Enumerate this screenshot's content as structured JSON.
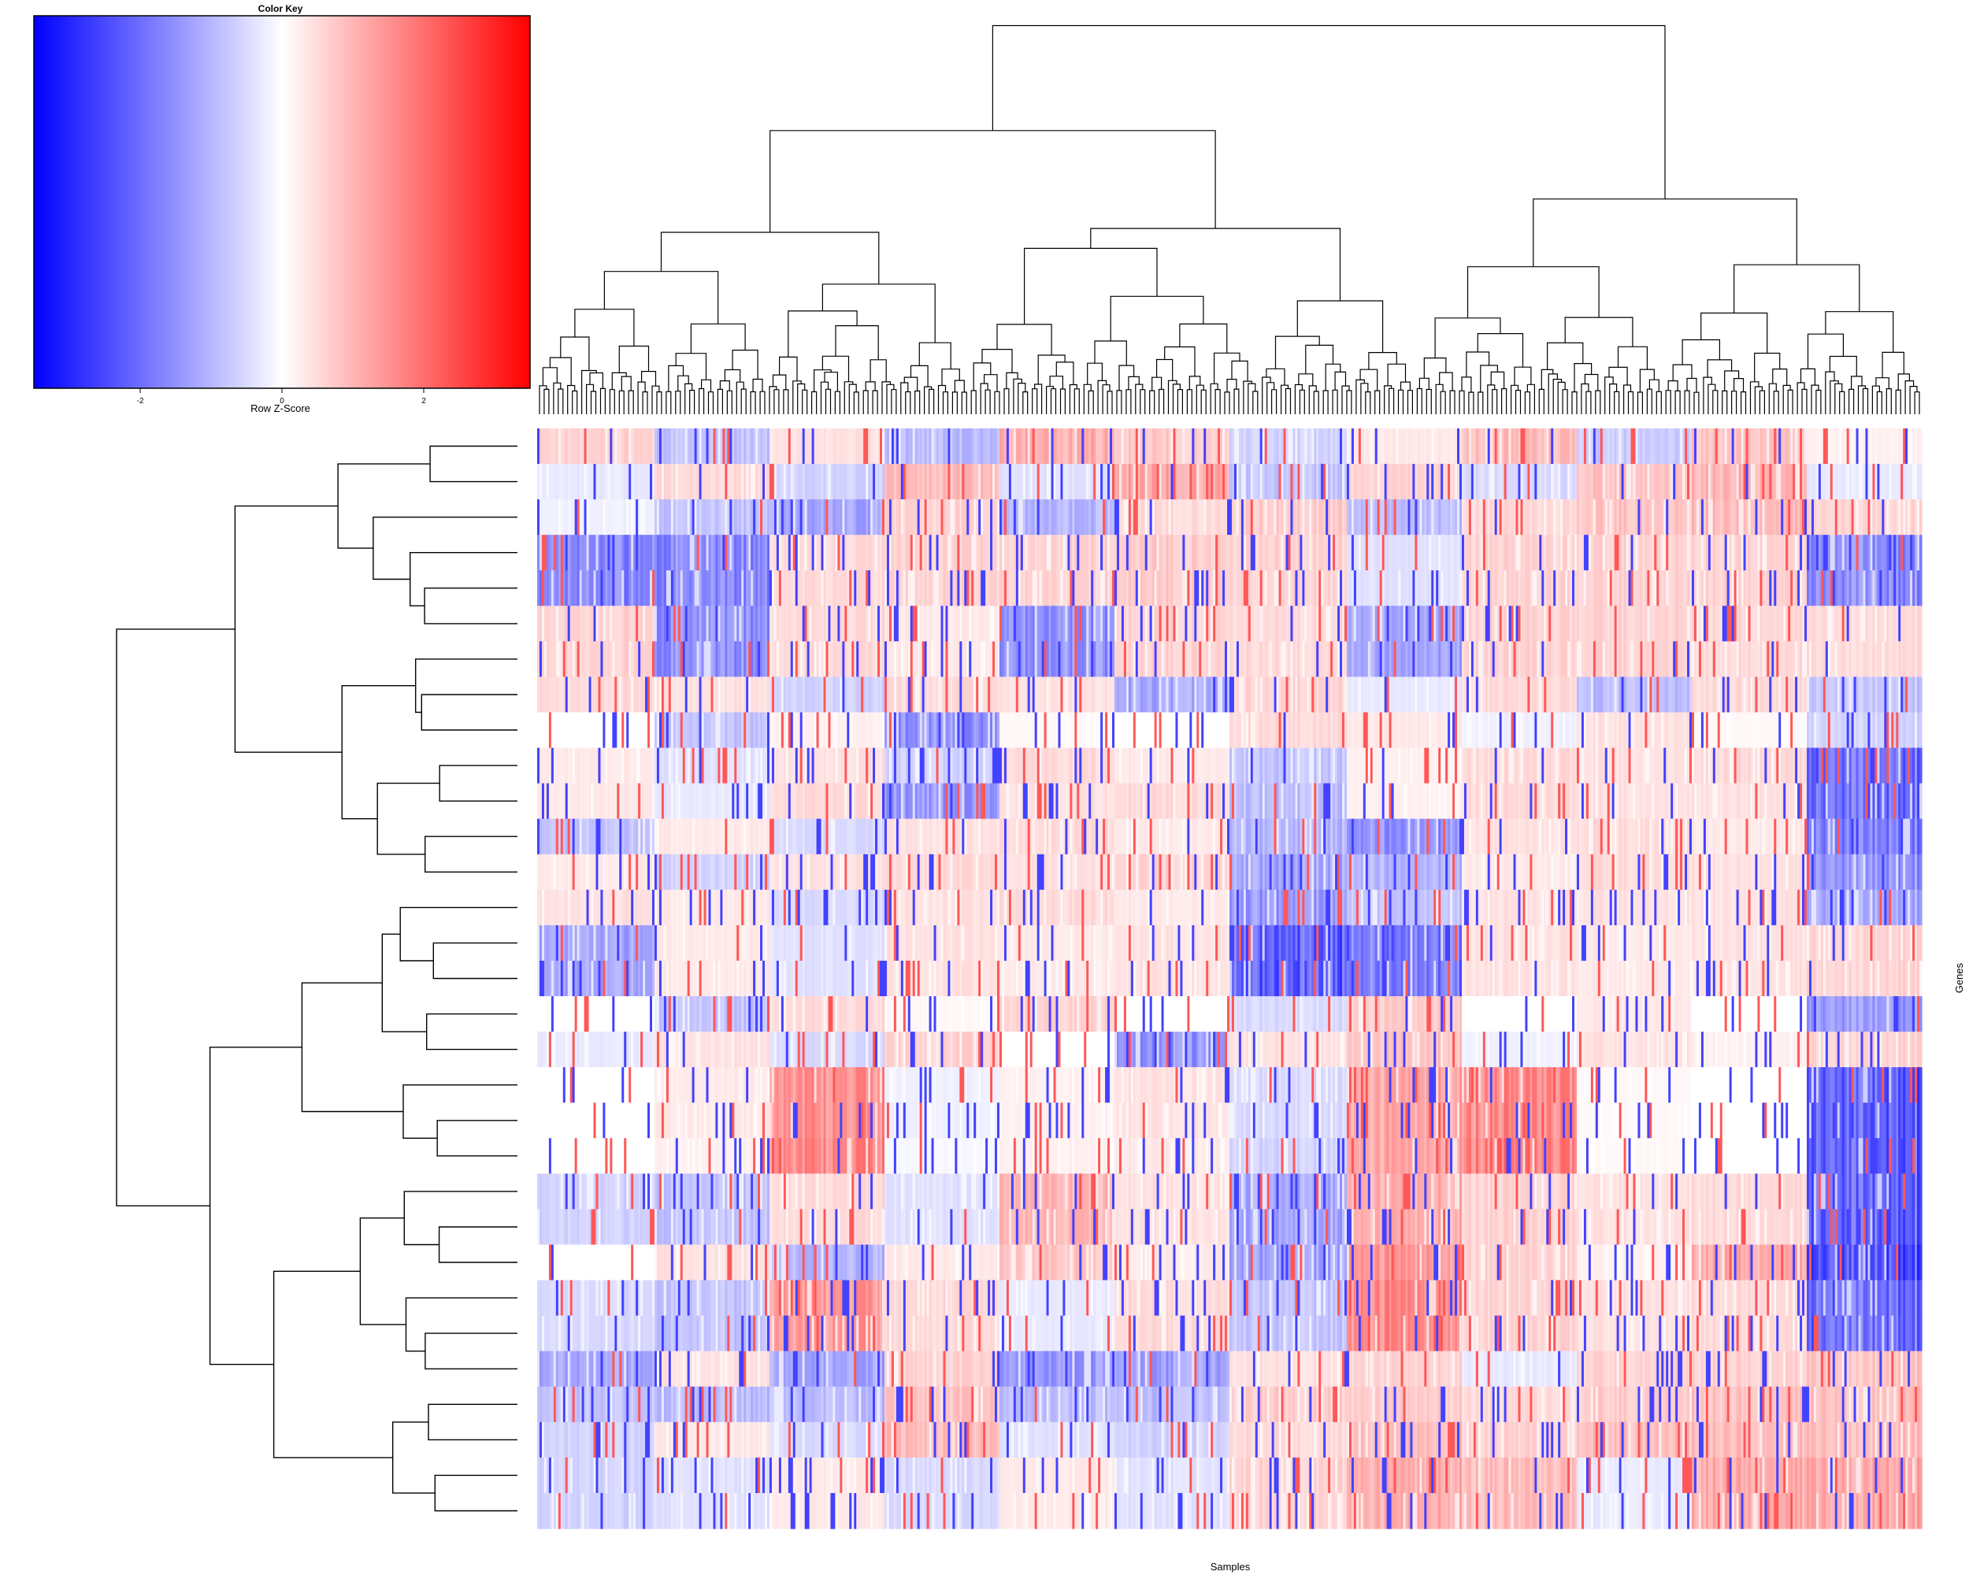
{
  "chart_data": {
    "type": "heatmap",
    "subtype": "clustered heatmap with row and column dendrograms",
    "xlabel": "Samples",
    "ylabel": "Genes",
    "n_rows": 31,
    "n_cols": 590,
    "color_key": {
      "title": "Color Key",
      "label": "Row Z-Score",
      "range": [
        -3.5,
        3.5
      ],
      "ticks": [
        -2,
        0,
        2
      ],
      "tick_labels": [
        "-2",
        "0",
        "2"
      ],
      "colors": {
        "low": "#0000ff",
        "mid": "#ffffff",
        "high": "#ff0000"
      }
    },
    "row_blocks_zscore": [
      [
        0.6,
        -0.8,
        0.4,
        -0.9,
        1.1,
        0.7,
        -0.6,
        0.3,
        0.9,
        -0.7,
        0.8,
        0.2
      ],
      [
        -0.3,
        0.5,
        -0.6,
        0.9,
        -0.4,
        1.2,
        -0.8,
        0.6,
        -0.5,
        0.8,
        1.0,
        -0.3
      ],
      [
        -0.2,
        -0.8,
        -1.2,
        0.6,
        -1.0,
        0.5,
        0.7,
        -0.9,
        0.5,
        0.8,
        0.9,
        0.6
      ],
      [
        -1.6,
        -1.6,
        0.5,
        0.6,
        0.6,
        0.7,
        0.6,
        -0.4,
        0.6,
        0.6,
        0.6,
        -1.6
      ],
      [
        -1.6,
        -1.6,
        0.5,
        0.6,
        0.6,
        0.7,
        0.6,
        -0.4,
        0.6,
        0.6,
        0.6,
        -1.6
      ],
      [
        0.6,
        -1.5,
        0.5,
        0.3,
        -1.5,
        0.6,
        0.5,
        -1.2,
        0.6,
        0.6,
        0.5,
        0.5
      ],
      [
        0.6,
        -1.5,
        0.5,
        0.3,
        -1.5,
        0.6,
        0.5,
        -1.2,
        0.6,
        0.6,
        0.5,
        0.5
      ],
      [
        0.5,
        0.4,
        -0.6,
        0.5,
        0.4,
        -1.2,
        0.6,
        -0.3,
        0.5,
        -0.9,
        0.5,
        -0.8
      ],
      [
        0.0,
        -0.8,
        0.2,
        -1.5,
        0.1,
        0.0,
        0.5,
        0.3,
        -0.2,
        0.4,
        0.1,
        -0.6
      ],
      [
        0.3,
        -0.4,
        0.4,
        -0.6,
        0.5,
        0.3,
        -0.8,
        0.2,
        0.5,
        0.4,
        0.5,
        -2.0
      ],
      [
        0.3,
        -0.3,
        0.5,
        -1.4,
        0.4,
        0.5,
        -0.9,
        0.2,
        0.5,
        0.4,
        0.4,
        -2.0
      ],
      [
        -0.8,
        0.3,
        -0.5,
        0.4,
        0.5,
        0.3,
        -1.0,
        -1.5,
        0.4,
        0.5,
        0.3,
        -1.8
      ],
      [
        0.3,
        -0.6,
        0.4,
        0.5,
        0.4,
        0.6,
        -1.2,
        -1.0,
        0.3,
        0.5,
        0.4,
        -1.5
      ],
      [
        0.4,
        0.3,
        -0.5,
        0.4,
        0.5,
        0.3,
        -1.4,
        -0.8,
        0.4,
        0.4,
        0.4,
        -1.2
      ],
      [
        -1.2,
        0.3,
        -0.4,
        0.4,
        0.3,
        0.4,
        -2.2,
        -1.8,
        0.4,
        0.3,
        0.4,
        0.6
      ],
      [
        -1.2,
        0.3,
        -0.4,
        0.4,
        0.3,
        0.4,
        -2.2,
        -1.8,
        0.4,
        0.3,
        0.4,
        0.6
      ],
      [
        0.0,
        -0.8,
        0.5,
        0.1,
        0.6,
        0.0,
        -0.5,
        0.7,
        0.0,
        0.3,
        0.0,
        -1.4
      ],
      [
        -0.3,
        0.4,
        -0.5,
        0.6,
        0.0,
        -1.5,
        0.4,
        0.8,
        -0.2,
        0.4,
        0.2,
        0.6
      ],
      [
        0.0,
        0.3,
        1.5,
        -0.2,
        0.2,
        0.4,
        -0.5,
        1.2,
        1.6,
        0.1,
        0.0,
        -2.2
      ],
      [
        0.0,
        0.3,
        1.5,
        -0.2,
        0.2,
        0.4,
        -0.5,
        1.2,
        1.6,
        0.1,
        0.0,
        -2.2
      ],
      [
        0.0,
        0.2,
        1.6,
        -0.1,
        0.2,
        0.3,
        -0.6,
        1.2,
        1.7,
        0.1,
        0.0,
        -2.2
      ],
      [
        -0.6,
        -0.8,
        0.5,
        -0.4,
        1.0,
        0.4,
        -1.2,
        1.1,
        0.6,
        0.4,
        0.5,
        -2.2
      ],
      [
        -0.6,
        -0.8,
        0.5,
        -0.4,
        1.0,
        0.4,
        -1.2,
        1.1,
        0.6,
        0.4,
        0.5,
        -2.2
      ],
      [
        0.0,
        0.4,
        -1.0,
        0.3,
        0.8,
        0.3,
        -1.3,
        1.4,
        0.6,
        0.2,
        1.1,
        -2.4
      ],
      [
        -0.5,
        -0.8,
        1.4,
        0.5,
        -0.3,
        0.5,
        -0.8,
        1.6,
        0.6,
        0.4,
        0.5,
        -2.0
      ],
      [
        -0.5,
        -0.8,
        1.4,
        0.5,
        -0.3,
        0.5,
        -0.8,
        1.6,
        0.6,
        0.4,
        0.5,
        -2.0
      ],
      [
        -1.2,
        0.4,
        -1.2,
        0.6,
        -1.4,
        -1.3,
        0.4,
        0.6,
        -0.3,
        0.6,
        0.6,
        0.8
      ],
      [
        -0.8,
        -0.9,
        -0.9,
        0.8,
        -0.9,
        -0.9,
        0.7,
        0.7,
        0.5,
        0.7,
        0.8,
        0.9
      ],
      [
        -0.6,
        0.3,
        -0.5,
        0.9,
        -0.4,
        -0.6,
        0.5,
        0.9,
        0.6,
        0.9,
        0.9,
        0.9
      ],
      [
        -0.6,
        -0.4,
        0.3,
        -0.5,
        0.3,
        -0.4,
        0.6,
        1.1,
        0.9,
        -0.3,
        1.1,
        1.2
      ],
      [
        -0.6,
        -0.4,
        0.3,
        -0.5,
        0.3,
        -0.4,
        0.6,
        1.1,
        0.9,
        -0.3,
        1.1,
        1.2
      ]
    ]
  }
}
